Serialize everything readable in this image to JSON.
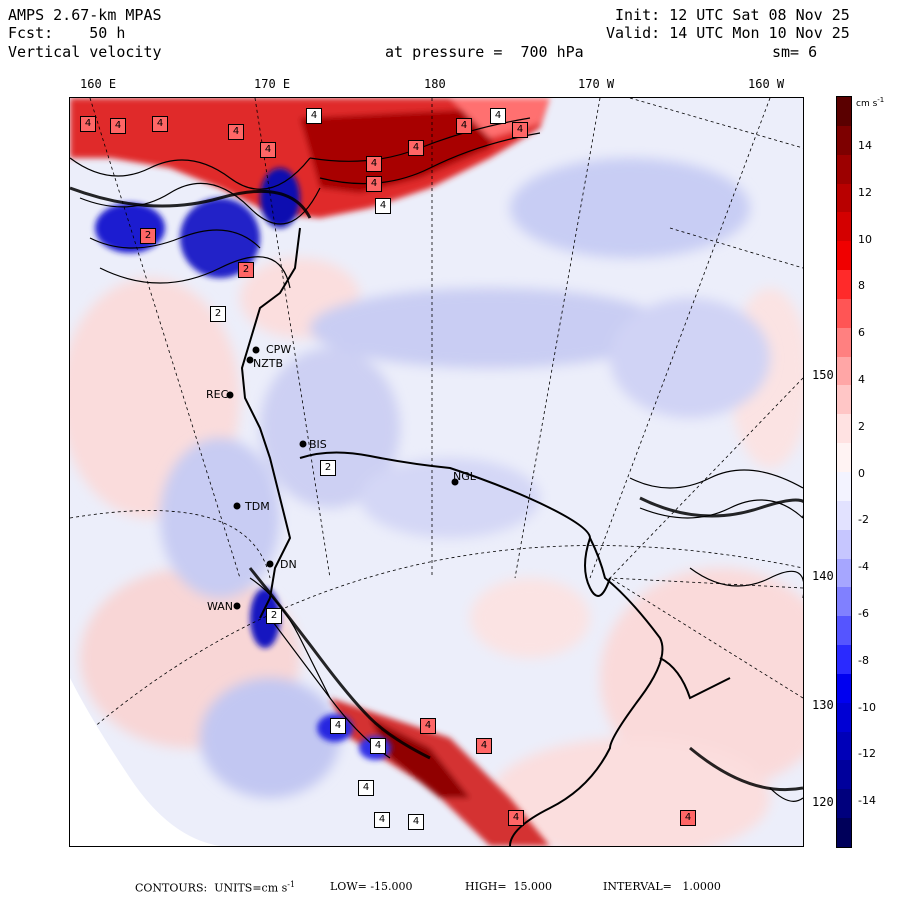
{
  "header": {
    "model": "AMPS 2.67-km MPAS",
    "fcst": "Fcst:    50 h",
    "field": "Vertical velocity",
    "init": "Init: 12 UTC Sat 08 Nov 25",
    "valid": "Valid: 14 UTC Mon 10 Nov 25",
    "pressure": "at pressure =  700 hPa",
    "smoothing": "sm= 6"
  },
  "lon_labels": [
    "160 E",
    "170 E",
    "180",
    "170 W",
    "160 W"
  ],
  "lat_labels": [
    "150 W",
    "140 W",
    "130 W",
    "120 W"
  ],
  "colorbar": {
    "units_html": "cm s",
    "units_exp": "-1",
    "ticks": [
      "14",
      "12",
      "10",
      "8",
      "6",
      "4",
      "2",
      "0",
      "-2",
      "-4",
      "-6",
      "-8",
      "-10",
      "-12",
      "-14"
    ],
    "colors": [
      "#5a0000",
      "#7d0000",
      "#9c0000",
      "#b80000",
      "#d40000",
      "#f00000",
      "#ff2a2a",
      "#ff5555",
      "#ff8080",
      "#ffa6a6",
      "#ffc6c6",
      "#ffe2e2",
      "#fff3f3",
      "#f3f3ff",
      "#e2e2ff",
      "#c6c6ff",
      "#a6a6ff",
      "#8080ff",
      "#5555ff",
      "#2a2aff",
      "#0000f0",
      "#0000d4",
      "#0000b8",
      "#00009c",
      "#00007d",
      "#00005a"
    ]
  },
  "stations": [
    {
      "id": "CPW",
      "label": "CPW"
    },
    {
      "id": "NZTB",
      "label": "NZTB"
    },
    {
      "id": "REC",
      "label": "REC"
    },
    {
      "id": "BIS",
      "label": "BIS"
    },
    {
      "id": "TDM",
      "label": "TDM"
    },
    {
      "id": "DN",
      "label": "DN"
    },
    {
      "id": "WAN",
      "label": "WAN"
    },
    {
      "id": "NGL",
      "label": "NGL"
    }
  ],
  "extrema_boxes": [
    "4",
    "4",
    "4",
    "4",
    "4",
    "4",
    "4",
    "4",
    "4",
    "4",
    "4",
    "4",
    "4",
    "2",
    "2",
    "2",
    "2",
    "2",
    "4",
    "4",
    "4",
    "4",
    "4",
    "4",
    "4",
    "4",
    "4"
  ],
  "footer": {
    "contours": "CONTOURS:  UNITS=cm s",
    "exp": "-1",
    "low": "LOW= -15.000",
    "high": "HIGH=  15.000",
    "interval": "INTERVAL=   1.0000"
  }
}
